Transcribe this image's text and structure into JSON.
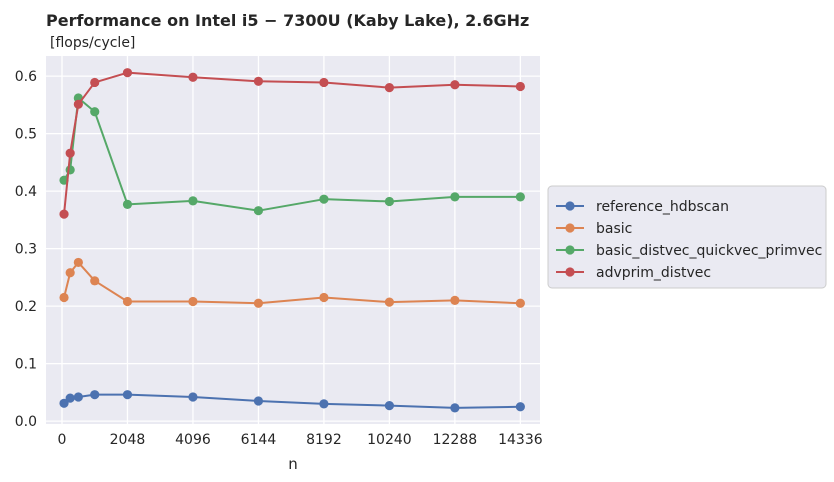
{
  "chart_data": {
    "type": "line",
    "title": "Performance on Intel i5 − 7300U (Kaby Lake),  2.6GHz",
    "subtitle": "[flops/cycle]",
    "xlabel": "n",
    "ylabel": "",
    "x": [
      64,
      256,
      512,
      1024,
      2048,
      4096,
      6144,
      8192,
      10240,
      12288,
      14336
    ],
    "xlim": [
      -500,
      14950
    ],
    "ylim": [
      -0.005,
      0.635
    ],
    "xticks": [
      0,
      2048,
      4096,
      6144,
      8192,
      10240,
      12288,
      14336
    ],
    "xtick_labels": [
      "0",
      "2048",
      "4096",
      "6144",
      "8192",
      "10240",
      "12288",
      "14336"
    ],
    "yticks": [
      0.0,
      0.1,
      0.2,
      0.3,
      0.4,
      0.5,
      0.6
    ],
    "ytick_labels": [
      "0.0",
      "0.1",
      "0.2",
      "0.3",
      "0.4",
      "0.5",
      "0.6"
    ],
    "grid": true,
    "legend_position": "right-outside",
    "series": [
      {
        "name": "reference_hdbscan",
        "color": "#4c72b0",
        "values": [
          0.031,
          0.04,
          0.042,
          0.046,
          0.046,
          0.042,
          0.035,
          0.03,
          0.027,
          0.023,
          0.025
        ]
      },
      {
        "name": "basic",
        "color": "#dd8452",
        "values": [
          0.215,
          0.258,
          0.276,
          0.244,
          0.208,
          0.208,
          0.205,
          0.215,
          0.207,
          0.21,
          0.205
        ]
      },
      {
        "name": "basic_distvec_quickvec_primvec",
        "color": "#55a868",
        "values": [
          0.419,
          0.437,
          0.562,
          0.538,
          0.377,
          0.383,
          0.366,
          0.386,
          0.382,
          0.39,
          0.39
        ]
      },
      {
        "name": "advprim_distvec",
        "color": "#c44e52",
        "values": [
          0.36,
          0.466,
          0.551,
          0.589,
          0.606,
          0.598,
          0.591,
          0.589,
          0.58,
          0.585,
          0.582
        ]
      }
    ]
  },
  "colors": {
    "plot_background": "#eaeaf2",
    "grid": "#ffffff",
    "text": "#262626"
  }
}
